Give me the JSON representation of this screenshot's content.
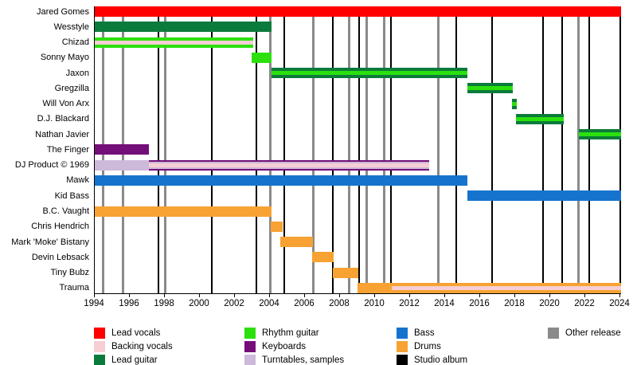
{
  "colors": {
    "lead_vocals": "#fe0000",
    "backing_vocals": "#f6ced3",
    "lead_guitar": "#0b7b3b",
    "rhythm_guitar": "#2ce00e",
    "keyboards": "#740e79",
    "turntables_samples": "#cdb9da",
    "bass": "#1673cd",
    "drums": "#f7a233",
    "studio_album": "#000000",
    "other_release": "#8a8a8a",
    "axis": "#000000"
  },
  "chart_data": {
    "type": "bar",
    "subtype": "band-member-gantt-timeline",
    "title": "",
    "xlabel": "",
    "ylabel": "",
    "x_axis": {
      "min": 1994,
      "max": 2024,
      "tick_step": 2,
      "ticks": [
        "1994",
        "1996",
        "1998",
        "2000",
        "2002",
        "2004",
        "2006",
        "2008",
        "2010",
        "2012",
        "2014",
        "2016",
        "2018",
        "2020",
        "2022",
        "2024"
      ]
    },
    "members": [
      {
        "name": "Jared Gomes",
        "bars": [
          {
            "from": 1994.0,
            "to": 2024.1,
            "roles": [
              "lead_vocals"
            ]
          }
        ]
      },
      {
        "name": "Wesstyle",
        "bars": [
          {
            "from": 1994.0,
            "to": 2004.13,
            "roles": [
              "lead_guitar"
            ]
          }
        ]
      },
      {
        "name": "Chizad",
        "bars": [
          {
            "from": 1994.0,
            "to": 2003.09,
            "roles": [
              "rhythm_guitar",
              "backing_vocals"
            ]
          }
        ]
      },
      {
        "name": "Sonny Mayo",
        "bars": [
          {
            "from": 2003.0,
            "to": 2004.14,
            "roles": [
              "rhythm_guitar"
            ]
          }
        ]
      },
      {
        "name": "Jaxon",
        "bars": [
          {
            "from": 2004.14,
            "to": 2015.3,
            "roles": [
              "lead_guitar",
              "rhythm_guitar"
            ]
          }
        ]
      },
      {
        "name": "Gregzilla",
        "bars": [
          {
            "from": 2015.3,
            "to": 2017.93,
            "roles": [
              "lead_guitar",
              "rhythm_guitar"
            ]
          }
        ]
      },
      {
        "name": "Will Von Arx",
        "bars": [
          {
            "from": 2017.85,
            "to": 2018.15,
            "roles": [
              "lead_guitar",
              "rhythm_guitar"
            ]
          }
        ]
      },
      {
        "name": "D.J. Blackard",
        "bars": [
          {
            "from": 2018.08,
            "to": 2020.82,
            "roles": [
              "lead_guitar",
              "rhythm_guitar"
            ]
          }
        ]
      },
      {
        "name": "Nathan Javier",
        "bars": [
          {
            "from": 2021.68,
            "to": 2024.1,
            "roles": [
              "lead_guitar",
              "rhythm_guitar"
            ]
          }
        ]
      },
      {
        "name": "The Finger",
        "bars": [
          {
            "from": 1994.0,
            "to": 1997.14,
            "roles": [
              "keyboards"
            ]
          }
        ]
      },
      {
        "name": "DJ Product © 1969",
        "bars": [
          {
            "from": 1994.0,
            "to": 1997.14,
            "roles": [
              "turntables_samples"
            ]
          },
          {
            "from": 1997.14,
            "to": 2013.14,
            "roles": [
              "keyboards",
              "turntables_samples",
              "backing_vocals"
            ]
          }
        ]
      },
      {
        "name": "Mawk",
        "bars": [
          {
            "from": 1994.0,
            "to": 2015.3,
            "roles": [
              "bass"
            ]
          }
        ]
      },
      {
        "name": "Kid Bass",
        "bars": [
          {
            "from": 2015.3,
            "to": 2024.1,
            "roles": [
              "bass"
            ]
          }
        ]
      },
      {
        "name": "B.C. Vaught",
        "bars": [
          {
            "from": 1994.0,
            "to": 2004.14,
            "roles": [
              "drums"
            ]
          }
        ]
      },
      {
        "name": "Chris Hendrich",
        "bars": [
          {
            "from": 2004.09,
            "to": 2004.77,
            "roles": [
              "drums"
            ]
          }
        ]
      },
      {
        "name": "Mark 'Moke' Bistany",
        "bars": [
          {
            "from": 2004.64,
            "to": 2006.5,
            "roles": [
              "drums"
            ]
          }
        ]
      },
      {
        "name": "Devin Lebsack",
        "bars": [
          {
            "from": 2006.45,
            "to": 2007.68,
            "roles": [
              "drums"
            ]
          }
        ]
      },
      {
        "name": "Tiny Bubz",
        "bars": [
          {
            "from": 2007.64,
            "to": 2009.09,
            "roles": [
              "drums"
            ]
          }
        ]
      },
      {
        "name": "Trauma",
        "bars": [
          {
            "from": 2009.05,
            "to": 2024.1,
            "roles": [
              "drums"
            ]
          },
          {
            "from": 2011.0,
            "to": 2024.1,
            "roles": [
              "drums",
              "backing_vocals"
            ]
          }
        ]
      }
    ],
    "vertical_lines": {
      "studio_album": [
        1997.68,
        2000.73,
        2003.27,
        2004.86,
        2007.64,
        2009.14,
        2010.95,
        2014.68,
        2016.73,
        2019.64,
        2020.73,
        2022.27,
        2024.05
      ],
      "other_release": [
        1994.5,
        1995.68,
        1998.05,
        2004.09,
        2006.5,
        2008.59,
        2009.55,
        2010.59,
        2013.68,
        2021.68
      ]
    }
  },
  "legend": {
    "columns": [
      [
        {
          "label": "Lead vocals",
          "key": "lead_vocals"
        },
        {
          "label": "Backing vocals",
          "key": "backing_vocals"
        },
        {
          "label": "Lead guitar",
          "key": "lead_guitar"
        }
      ],
      [
        {
          "label": "Rhythm guitar",
          "key": "rhythm_guitar"
        },
        {
          "label": "Keyboards",
          "key": "keyboards"
        },
        {
          "label": "Turntables, samples",
          "key": "turntables_samples"
        }
      ],
      [
        {
          "label": "Bass",
          "key": "bass"
        },
        {
          "label": "Drums",
          "key": "drums"
        },
        {
          "label": "Studio album",
          "key": "studio_album"
        }
      ],
      [
        {
          "label": "Other release",
          "key": "other_release"
        }
      ]
    ]
  }
}
